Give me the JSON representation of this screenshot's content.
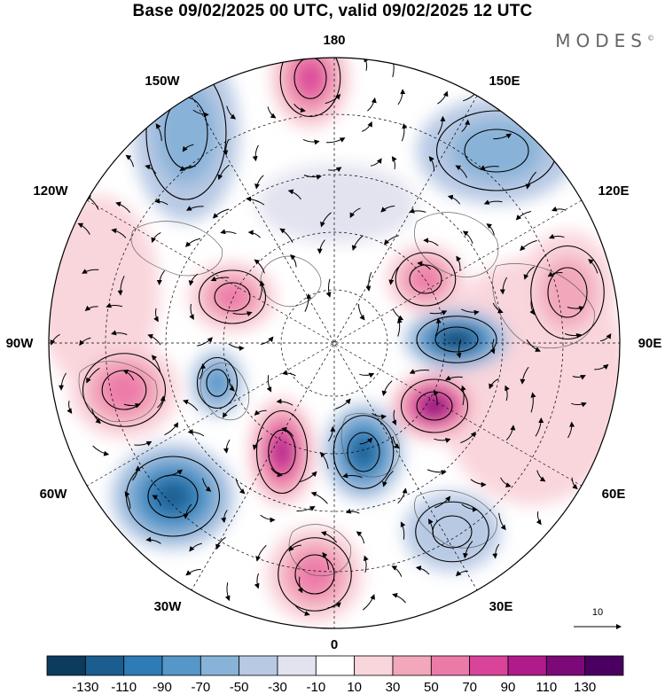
{
  "header": {
    "title": "Base 09/02/2025 00 UTC, valid 09/02/2025 12 UTC",
    "brand": "MODES",
    "brand_mark": "©"
  },
  "map": {
    "projection": "north-polar-stereographic",
    "longitude_labels": {
      "top": "180",
      "bottom": "0",
      "left": "90W",
      "right": "90E",
      "upper_left": "150W",
      "upper_right": "150E",
      "mid_upper_left": "120W",
      "mid_upper_right": "120E",
      "lower_left": "60W",
      "lower_right": "60E",
      "bottom_left": "30W",
      "bottom_right": "30E"
    },
    "reference_vector_label": "10",
    "anomaly_centers": [
      {
        "sign": "positive",
        "magnitude": 90,
        "near": "180 / Bering Sea"
      },
      {
        "sign": "negative",
        "magnitude": -50,
        "near": "150W / Alaska Gulf"
      },
      {
        "sign": "positive",
        "magnitude": 70,
        "near": "Canadian Arctic"
      },
      {
        "sign": "positive",
        "magnitude": 70,
        "near": "90W / Hudson Bay"
      },
      {
        "sign": "negative",
        "magnitude": -70,
        "near": "Greenland west"
      },
      {
        "sign": "negative",
        "magnitude": -110,
        "near": "60W / North Atlantic"
      },
      {
        "sign": "positive",
        "magnitude": 110,
        "near": "Greenland Sea"
      },
      {
        "sign": "negative",
        "magnitude": -110,
        "near": "Scandinavia"
      },
      {
        "sign": "positive",
        "magnitude": 70,
        "near": "0 / Europe"
      },
      {
        "sign": "positive",
        "magnitude": 130,
        "near": "Barents / Kara"
      },
      {
        "sign": "negative",
        "magnitude": -130,
        "near": "Siberia 90E"
      },
      {
        "sign": "positive",
        "magnitude": 70,
        "near": "East Siberian Sea"
      },
      {
        "sign": "positive",
        "magnitude": 50,
        "near": "120E Asia"
      },
      {
        "sign": "negative",
        "magnitude": -50,
        "near": "150E Pacific"
      },
      {
        "sign": "negative",
        "magnitude": -30,
        "near": "40E Caspian"
      }
    ]
  },
  "colorbar": {
    "ticks": [
      "-130",
      "-110",
      "-90",
      "-70",
      "-50",
      "-30",
      "-10",
      "10",
      "30",
      "50",
      "70",
      "90",
      "110",
      "130"
    ],
    "colors": [
      "#0c3b5e",
      "#1b5d8f",
      "#2e7bb5",
      "#5597c8",
      "#88b2d8",
      "#b8c9e4",
      "#e3e3f0",
      "#ffffff",
      "#f9d5dc",
      "#f2a7ba",
      "#ec7aa8",
      "#d9449a",
      "#b01b8c",
      "#7b0a78",
      "#4a0061"
    ]
  }
}
